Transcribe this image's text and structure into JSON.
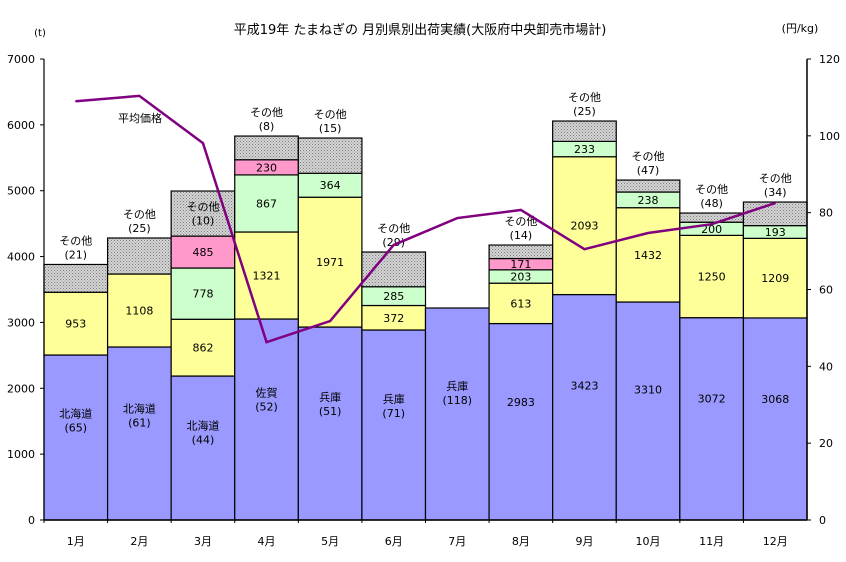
{
  "chart_data": {
    "type": "bar",
    "stacked": true,
    "title": "平成19年 たまねぎの 月別県別出荷実績(大阪府中央卸売市場計)",
    "ylabel": "(t)",
    "y2label": "(円/kg)",
    "ylim": [
      0,
      7000
    ],
    "yticks": [
      0,
      1000,
      2000,
      3000,
      4000,
      5000,
      6000,
      7000
    ],
    "y2lim": [
      0,
      120
    ],
    "y2ticks": [
      0,
      20,
      40,
      60,
      80,
      100,
      120
    ],
    "categories": [
      "1月",
      "2月",
      "3月",
      "4月",
      "5月",
      "6月",
      "7月",
      "8月",
      "9月",
      "10月",
      "11月",
      "12月"
    ],
    "colors": {
      "base": "#9999ff",
      "second": "#ffff99",
      "third": "#ccffcc",
      "fourth": "#ff99cc",
      "other": "#c0c0c0",
      "line": "#800080"
    },
    "bars": [
      {
        "segments": [
          {
            "kind": "base",
            "value": 2505,
            "lines": [
              "北海道",
              "(65)"
            ]
          },
          {
            "kind": "second",
            "value": 953,
            "lines": [
              "953"
            ]
          },
          {
            "kind": "other",
            "value": 422,
            "lines": [
              "その他",
              "(21)"
            ]
          }
        ]
      },
      {
        "segments": [
          {
            "kind": "base",
            "value": 2627,
            "lines": [
              "北海道",
              "(61)"
            ]
          },
          {
            "kind": "second",
            "value": 1108,
            "lines": [
              "1108"
            ]
          },
          {
            "kind": "other",
            "value": 547,
            "lines": [
              "その他",
              "(25)"
            ]
          }
        ]
      },
      {
        "segments": [
          {
            "kind": "base",
            "value": 2186,
            "lines": [
              "北海道",
              "(44)"
            ]
          },
          {
            "kind": "second",
            "value": 862,
            "lines": [
              "862"
            ]
          },
          {
            "kind": "third",
            "value": 778,
            "lines": [
              "778"
            ]
          },
          {
            "kind": "fourth",
            "value": 485,
            "lines": [
              "485"
            ]
          },
          {
            "kind": "other",
            "value": 684,
            "lines": [
              "その他",
              "(10)"
            ]
          }
        ]
      },
      {
        "segments": [
          {
            "kind": "base",
            "value": 3052,
            "lines": [
              "佐賀",
              "(52)"
            ]
          },
          {
            "kind": "second",
            "value": 1321,
            "lines": [
              "1321"
            ]
          },
          {
            "kind": "third",
            "value": 867,
            "lines": [
              "867"
            ]
          },
          {
            "kind": "fourth",
            "value": 230,
            "lines": [
              "230"
            ]
          },
          {
            "kind": "other",
            "value": 360,
            "lines": [
              "その他",
              "(8)"
            ]
          }
        ]
      },
      {
        "segments": [
          {
            "kind": "base",
            "value": 2930,
            "lines": [
              "兵庫",
              "(51)"
            ]
          },
          {
            "kind": "second",
            "value": 1971,
            "lines": [
              "1971"
            ]
          },
          {
            "kind": "third",
            "value": 364,
            "lines": [
              "364"
            ]
          },
          {
            "kind": "other",
            "value": 535,
            "lines": [
              "その他",
              "(15)"
            ]
          }
        ]
      },
      {
        "segments": [
          {
            "kind": "base",
            "value": 2885,
            "lines": [
              "兵庫",
              "(71)"
            ]
          },
          {
            "kind": "second",
            "value": 372,
            "lines": [
              "372"
            ]
          },
          {
            "kind": "third",
            "value": 285,
            "lines": [
              "285"
            ]
          },
          {
            "kind": "other",
            "value": 527,
            "lines": [
              "その他",
              "(29)"
            ]
          }
        ]
      },
      {
        "segments": [
          {
            "kind": "base",
            "value": 3219,
            "lines": [
              "兵庫",
              "(118)"
            ]
          }
        ]
      },
      {
        "segments": [
          {
            "kind": "base",
            "value": 2983,
            "lines": [
              "2983"
            ]
          },
          {
            "kind": "second",
            "value": 613,
            "lines": [
              "613"
            ]
          },
          {
            "kind": "third",
            "value": 203,
            "lines": [
              "203"
            ]
          },
          {
            "kind": "fourth",
            "value": 171,
            "lines": [
              "171"
            ]
          },
          {
            "kind": "other",
            "value": 205,
            "lines": [
              "その他",
              "(14)"
            ]
          }
        ]
      },
      {
        "segments": [
          {
            "kind": "base",
            "value": 3423,
            "lines": [
              "3423"
            ]
          },
          {
            "kind": "second",
            "value": 2093,
            "lines": [
              "2093"
            ]
          },
          {
            "kind": "third",
            "value": 233,
            "lines": [
              "233"
            ]
          },
          {
            "kind": "other",
            "value": 309,
            "lines": [
              "その他",
              "(25)"
            ]
          }
        ]
      },
      {
        "segments": [
          {
            "kind": "base",
            "value": 3310,
            "lines": [
              "3310"
            ]
          },
          {
            "kind": "second",
            "value": 1432,
            "lines": [
              "1432"
            ]
          },
          {
            "kind": "third",
            "value": 238,
            "lines": [
              "238"
            ]
          },
          {
            "kind": "other",
            "value": 182,
            "lines": [
              "その他",
              "(47)"
            ]
          }
        ]
      },
      {
        "segments": [
          {
            "kind": "base",
            "value": 3072,
            "lines": [
              "3072"
            ]
          },
          {
            "kind": "second",
            "value": 1250,
            "lines": [
              "1250"
            ]
          },
          {
            "kind": "third",
            "value": 200,
            "lines": [
              "200"
            ]
          },
          {
            "kind": "other",
            "value": 139,
            "lines": [
              "その他",
              "(48)"
            ]
          }
        ]
      },
      {
        "segments": [
          {
            "kind": "base",
            "value": 3068,
            "lines": [
              "3068"
            ]
          },
          {
            "kind": "second",
            "value": 1209,
            "lines": [
              "1209"
            ]
          },
          {
            "kind": "third",
            "value": 193,
            "lines": [
              "193"
            ]
          },
          {
            "kind": "other",
            "value": 358,
            "lines": [
              "その他",
              "(34)"
            ]
          }
        ]
      }
    ],
    "line_series": {
      "name": "平均価格",
      "axis": "right",
      "values": [
        109,
        110.4,
        98.1,
        46.3,
        51.8,
        71.6,
        78.6,
        80.7,
        70.5,
        74.7,
        77,
        82.5
      ]
    }
  }
}
